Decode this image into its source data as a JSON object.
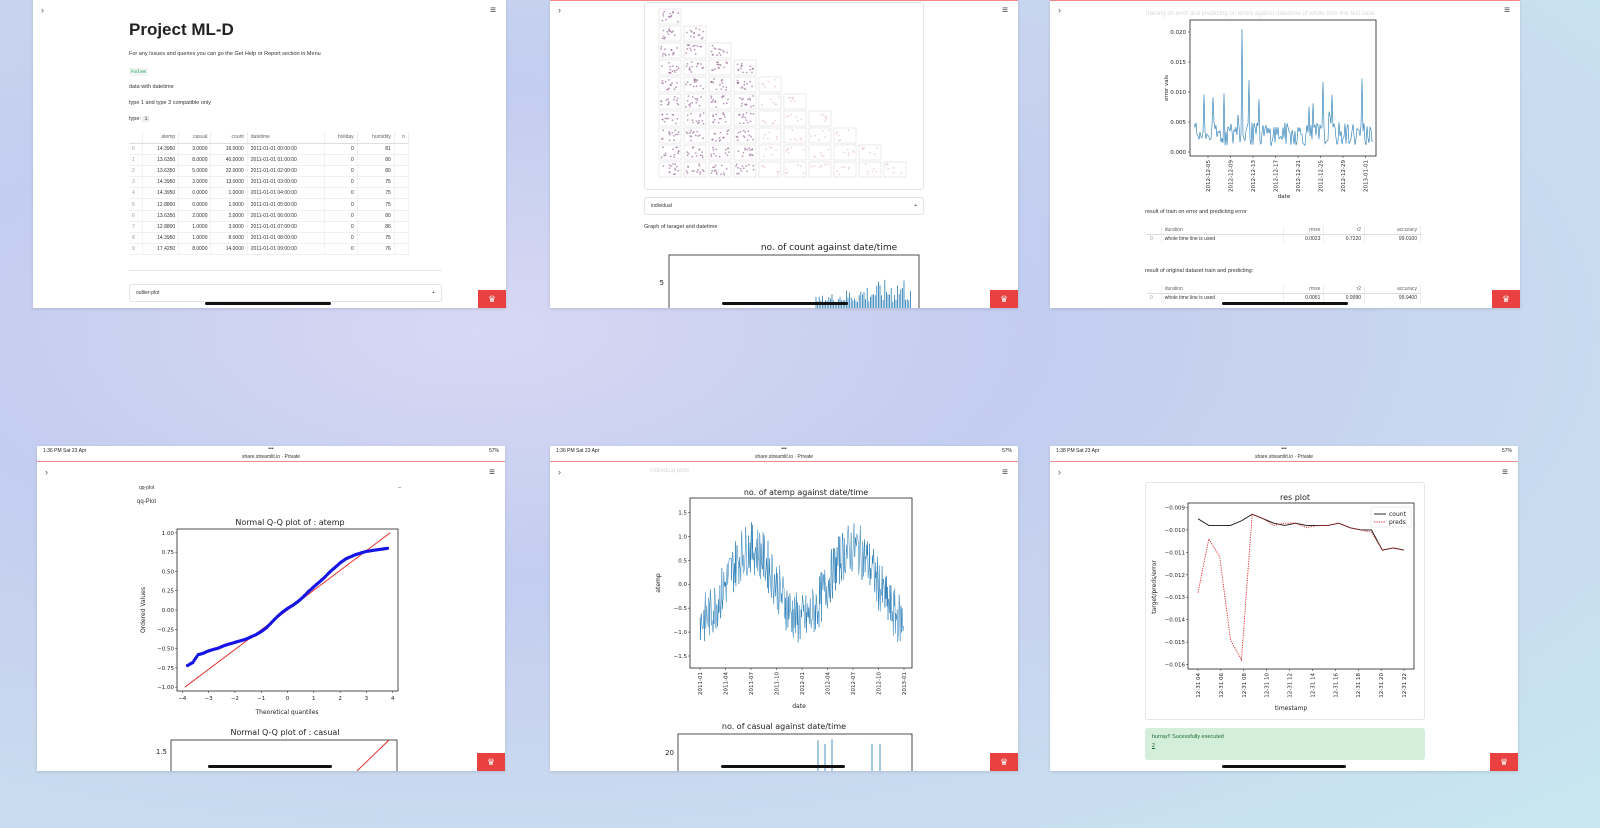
{
  "panels": {
    "p1": {
      "title": "Project ML-D",
      "help_text": "For any Issues and queries you can go the Get Help or Report section in Menu",
      "code_value": "False",
      "label_datetime": "data with datetime",
      "label_compat": "type 1 and type 3 compatible only",
      "type_label": "type:",
      "type_value": "1",
      "table": {
        "columns": [
          "",
          "atemp",
          "casual",
          "count",
          "datetime",
          "holiday",
          "humidity",
          "n"
        ],
        "rows": [
          [
            "0",
            "14.3950",
            "3.0000",
            "16.0000",
            "2011-01-01 00:00:00",
            "0",
            "81",
            ""
          ],
          [
            "1",
            "13.6350",
            "8.0000",
            "40.0000",
            "2011-01-01 01:00:00",
            "0",
            "80",
            ""
          ],
          [
            "2",
            "13.6350",
            "5.0000",
            "32.0000",
            "2011-01-01 02:00:00",
            "0",
            "80",
            ""
          ],
          [
            "3",
            "14.3950",
            "3.0000",
            "13.0000",
            "2011-01-01 03:00:00",
            "0",
            "75",
            ""
          ],
          [
            "4",
            "14.3950",
            "0.0000",
            "1.0000",
            "2011-01-01 04:00:00",
            "0",
            "75",
            ""
          ],
          [
            "5",
            "12.8800",
            "0.0000",
            "1.0000",
            "2011-01-01 05:00:00",
            "0",
            "75",
            ""
          ],
          [
            "6",
            "13.6350",
            "2.0000",
            "2.0000",
            "2011-01-01 06:00:00",
            "0",
            "80",
            ""
          ],
          [
            "7",
            "12.8800",
            "1.0000",
            "3.0000",
            "2011-01-01 07:00:00",
            "0",
            "86",
            ""
          ],
          [
            "8",
            "14.3950",
            "1.0000",
            "8.0000",
            "2011-01-01 08:00:00",
            "0",
            "75",
            ""
          ],
          [
            "9",
            "17.4250",
            "8.0000",
            "14.0000",
            "2011-01-01 09:00:00",
            "0",
            "76",
            ""
          ]
        ]
      },
      "expander_label": "outlier-plot",
      "expander_icon": "+"
    },
    "p2": {
      "expander_label": "individual",
      "expander_icon": "+",
      "graph_label": "Graph of taraget and datetime",
      "chart_title": "no. of count against date/time",
      "ytick": "5"
    },
    "p3": {
      "faded_title": "training on error and predicting on errors against date/time of whole time line test case",
      "chart_ylabel": "error vals",
      "chart_xlabel": "date",
      "yticks": [
        "0.020",
        "0.015",
        "0.010",
        "0.005",
        "0.000"
      ],
      "xticks": [
        "2012-12-05",
        "2012-12-09",
        "2012-12-13",
        "2012-12-17",
        "2012-12-21",
        "2012-12-25",
        "2012-12-29",
        "2013-01-01"
      ],
      "result1_label": "result of train on error and predicting error",
      "result2_label": "result of original dataset train and predicting:",
      "table_columns": [
        "",
        "duration",
        "rmse",
        "r2",
        "accuracy"
      ],
      "table1_row": [
        "0",
        "whole time line is used",
        "0.0023",
        "0.7220",
        "99.0100"
      ],
      "table2_row": [
        "0",
        "whole time line is used",
        "0.0051",
        "0.9990",
        "99.9400"
      ]
    },
    "p4": {
      "status_time": "1:36 PM   Sat 23 Apr",
      "status_right": "57%",
      "url": "share.streamlit.io  ·  Private",
      "expander_label": "qq-plot",
      "expander_icon": "–",
      "section_label": "qq-Plot",
      "chart_title": "Normal Q-Q plot of : atemp",
      "xlabel": "Theoretical quantiles",
      "ylabel": "Ordered Values",
      "xticks": [
        "−4",
        "−3",
        "−2",
        "−1",
        "0",
        "1",
        "2",
        "3",
        "4"
      ],
      "yticks": [
        "1.00",
        "0.75",
        "0.50",
        "0.25",
        "0.00",
        "−0.25",
        "−0.50",
        "−0.75",
        "−1.00"
      ],
      "chart2_title": "Normal Q-Q plot of : casual",
      "chart2_ytick": "1.5"
    },
    "p5": {
      "status_time": "1:36 PM   Sat 23 Apr",
      "status_right": "57%",
      "url": "share.streamlit.io  ·  Private",
      "faded_label": "individual plots",
      "chart_title": "no. of atemp against date/time",
      "ylabel": "atemp",
      "xlabel": "date",
      "yticks": [
        "1.5",
        "1.0",
        "0.5",
        "0.0",
        "−0.5",
        "−1.0",
        "−1.5"
      ],
      "xticks": [
        "2011-01",
        "2011-04",
        "2011-07",
        "2011-10",
        "2012-01",
        "2012-04",
        "2012-07",
        "2012-10",
        "2013-01"
      ],
      "chart2_title": "no. of casual against date/time",
      "chart2_ytick": "20"
    },
    "p6": {
      "status_time": "1:38 PM   Sat 23 Apr",
      "status_right": "57%",
      "url": "share.streamlit.io  ·  Private",
      "chart_title": "res plot",
      "ylabel": "target/preds/error",
      "xlabel": "timestamp",
      "yticks": [
        "−0.009",
        "−0.010",
        "−0.011",
        "−0.012",
        "−0.013",
        "−0.014",
        "−0.015",
        "−0.016"
      ],
      "xticks": [
        "12-31 04",
        "12-31 06",
        "12-31 08",
        "12-31 10",
        "12-31 12",
        "12-31 14",
        "12-31 16",
        "12-31 18",
        "12-31 20",
        "12-31 22"
      ],
      "legend": [
        "count",
        "preds"
      ],
      "success_text": "hurray!! Sucessfully executed",
      "success_sub": "2"
    }
  },
  "chart_data": [
    {
      "type": "line",
      "title": "Normal Q-Q plot of : atemp",
      "xlabel": "Theoretical quantiles",
      "ylabel": "Ordered Values",
      "xlim": [
        -4.2,
        4.2
      ],
      "ylim": [
        -1.05,
        1.05
      ],
      "series": [
        {
          "kind": "points",
          "x": [
            -3.8,
            -3.6,
            -3.4,
            -3.2,
            -3.0,
            -2.8,
            -2.6,
            -2.4,
            -2.2,
            -2.0,
            -1.8,
            -1.6,
            -1.4,
            -1.2,
            -1.0,
            -0.8,
            -0.6,
            -0.4,
            -0.2,
            0.0,
            0.2,
            0.4,
            0.6,
            0.8,
            1.0,
            1.2,
            1.4,
            1.6,
            1.8,
            2.0,
            2.2,
            2.4,
            2.6,
            2.8,
            3.0,
            3.2,
            3.4,
            3.6,
            3.8
          ],
          "y": [
            -0.72,
            -0.68,
            -0.58,
            -0.56,
            -0.53,
            -0.51,
            -0.49,
            -0.46,
            -0.44,
            -0.42,
            -0.4,
            -0.38,
            -0.35,
            -0.32,
            -0.28,
            -0.23,
            -0.16,
            -0.09,
            -0.03,
            0.02,
            0.06,
            0.11,
            0.17,
            0.24,
            0.3,
            0.36,
            0.42,
            0.49,
            0.55,
            0.61,
            0.66,
            0.69,
            0.72,
            0.74,
            0.76,
            0.77,
            0.78,
            0.79,
            0.8
          ]
        },
        {
          "kind": "reference-line",
          "x": [
            -3.9,
            3.9
          ],
          "y": [
            -1.0,
            1.0
          ]
        }
      ]
    },
    {
      "type": "line",
      "title": "res plot",
      "xlabel": "timestamp",
      "ylabel": "target/preds/error",
      "ylim": [
        -0.0162,
        -0.0088
      ],
      "series": [
        {
          "name": "count",
          "values": [
            -0.0095,
            -0.0098,
            -0.0098,
            -0.0098,
            -0.0096,
            -0.0093,
            -0.0095,
            -0.0097,
            -0.0098,
            -0.0097,
            -0.0098,
            -0.0098,
            -0.0098,
            -0.0097,
            -0.0099,
            -0.01,
            -0.01,
            -0.0109,
            -0.0108,
            -0.0109
          ]
        },
        {
          "name": "preds",
          "values": [
            -0.0128,
            -0.0104,
            -0.0112,
            -0.0149,
            -0.0158,
            -0.0093,
            -0.0095,
            -0.0098,
            -0.0097,
            -0.0097,
            -0.0099,
            -0.0098,
            -0.0098,
            -0.0097,
            -0.0099,
            -0.01,
            -0.0101,
            -0.0109,
            -0.0108,
            -0.0109
          ]
        }
      ]
    }
  ]
}
